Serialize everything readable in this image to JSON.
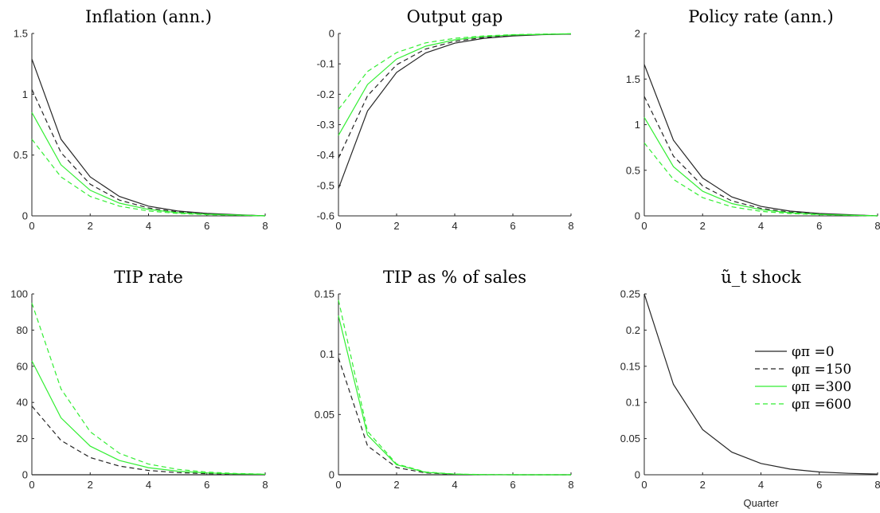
{
  "colors": {
    "black": "#262626",
    "green": "#33ee33",
    "axis": "#262626"
  },
  "chart_data": [
    {
      "type": "line",
      "title": "Inflation (ann.)",
      "xlabel": "",
      "ylabel": "",
      "xlim": [
        0,
        8
      ],
      "ylim": [
        0,
        1.5
      ],
      "xticks": [
        0,
        2,
        4,
        6,
        8
      ],
      "yticks": [
        0,
        0.5,
        1,
        1.5
      ],
      "ytick_labels": [
        "0",
        "0.5",
        "1",
        "1.5"
      ],
      "grid": false,
      "x": [
        0,
        1,
        2,
        3,
        4,
        5,
        6,
        7,
        8
      ],
      "series": [
        {
          "color": "#262626",
          "dash": "solid",
          "values": [
            1.29,
            0.63,
            0.32,
            0.16,
            0.08,
            0.04,
            0.02,
            0.01,
            0.0
          ]
        },
        {
          "color": "#262626",
          "dash": "dashed",
          "values": [
            1.04,
            0.52,
            0.26,
            0.13,
            0.065,
            0.033,
            0.016,
            0.008,
            0.0
          ]
        },
        {
          "color": "#33ee33",
          "dash": "solid",
          "values": [
            0.85,
            0.42,
            0.21,
            0.105,
            0.053,
            0.026,
            0.013,
            0.007,
            0.0
          ]
        },
        {
          "color": "#33ee33",
          "dash": "dashed",
          "values": [
            0.63,
            0.32,
            0.16,
            0.08,
            0.04,
            0.02,
            0.01,
            0.005,
            0.0
          ]
        }
      ]
    },
    {
      "type": "line",
      "title": "Output gap",
      "xlabel": "",
      "ylabel": "",
      "xlim": [
        0,
        8
      ],
      "ylim": [
        -0.6,
        0
      ],
      "xticks": [
        0,
        2,
        4,
        6,
        8
      ],
      "yticks": [
        0,
        -0.1,
        -0.2,
        -0.3,
        -0.4,
        -0.5,
        -0.6
      ],
      "ytick_labels": [
        "0",
        "-0.1",
        "-0.2",
        "-0.3",
        "-0.4",
        "-0.5",
        "-0.6"
      ],
      "grid": false,
      "x": [
        0,
        1,
        2,
        3,
        4,
        5,
        6,
        7,
        8
      ],
      "series": [
        {
          "color": "#262626",
          "dash": "solid",
          "values": [
            -0.51,
            -0.255,
            -0.128,
            -0.064,
            -0.032,
            -0.016,
            -0.008,
            -0.004,
            -0.002
          ]
        },
        {
          "color": "#262626",
          "dash": "dashed",
          "values": [
            -0.41,
            -0.205,
            -0.103,
            -0.051,
            -0.026,
            -0.013,
            -0.006,
            -0.003,
            -0.002
          ]
        },
        {
          "color": "#33ee33",
          "dash": "solid",
          "values": [
            -0.335,
            -0.168,
            -0.084,
            -0.042,
            -0.021,
            -0.01,
            -0.005,
            -0.003,
            -0.001
          ]
        },
        {
          "color": "#33ee33",
          "dash": "dashed",
          "values": [
            -0.25,
            -0.125,
            -0.063,
            -0.031,
            -0.016,
            -0.008,
            -0.004,
            -0.002,
            -0.001
          ]
        }
      ]
    },
    {
      "type": "line",
      "title": "Policy rate (ann.)",
      "xlabel": "",
      "ylabel": "",
      "xlim": [
        0,
        8
      ],
      "ylim": [
        0,
        2
      ],
      "xticks": [
        0,
        2,
        4,
        6,
        8
      ],
      "yticks": [
        0,
        0.5,
        1,
        1.5,
        2
      ],
      "ytick_labels": [
        "0",
        "0.5",
        "1",
        "1.5",
        "2"
      ],
      "grid": false,
      "x": [
        0,
        1,
        2,
        3,
        4,
        5,
        6,
        7,
        8
      ],
      "series": [
        {
          "color": "#262626",
          "dash": "solid",
          "values": [
            1.66,
            0.83,
            0.415,
            0.208,
            0.104,
            0.052,
            0.026,
            0.013,
            0.0
          ]
        },
        {
          "color": "#262626",
          "dash": "dashed",
          "values": [
            1.31,
            0.655,
            0.328,
            0.164,
            0.082,
            0.041,
            0.02,
            0.01,
            0.0
          ]
        },
        {
          "color": "#33ee33",
          "dash": "solid",
          "values": [
            1.08,
            0.54,
            0.27,
            0.135,
            0.068,
            0.034,
            0.017,
            0.008,
            0.0
          ]
        },
        {
          "color": "#33ee33",
          "dash": "dashed",
          "values": [
            0.8,
            0.4,
            0.2,
            0.1,
            0.05,
            0.025,
            0.013,
            0.006,
            0.0
          ]
        }
      ]
    },
    {
      "type": "line",
      "title": "TIP rate",
      "xlabel": "",
      "ylabel": "",
      "xlim": [
        0,
        8
      ],
      "ylim": [
        0,
        100
      ],
      "xticks": [
        0,
        2,
        4,
        6,
        8
      ],
      "yticks": [
        0,
        20,
        40,
        60,
        80,
        100
      ],
      "ytick_labels": [
        "0",
        "20",
        "40",
        "60",
        "80",
        "100"
      ],
      "grid": false,
      "x": [
        0,
        1,
        2,
        3,
        4,
        5,
        6,
        7,
        8
      ],
      "series": [
        {
          "color": "#262626",
          "dash": "solid",
          "values": [
            0,
            0,
            0,
            0,
            0,
            0,
            0,
            0,
            0
          ]
        },
        {
          "color": "#262626",
          "dash": "dashed",
          "values": [
            38,
            19,
            9.5,
            4.8,
            2.4,
            1.2,
            0.6,
            0.3,
            0.15
          ]
        },
        {
          "color": "#33ee33",
          "dash": "solid",
          "values": [
            63,
            31.5,
            15.8,
            7.9,
            3.9,
            2.0,
            1.0,
            0.5,
            0.25
          ]
        },
        {
          "color": "#33ee33",
          "dash": "dashed",
          "values": [
            95,
            47.5,
            23.8,
            11.9,
            5.9,
            3.0,
            1.5,
            0.7,
            0.35
          ]
        }
      ]
    },
    {
      "type": "line",
      "title": "TIP as % of sales",
      "xlabel": "",
      "ylabel": "",
      "xlim": [
        0,
        8
      ],
      "ylim": [
        0,
        0.15
      ],
      "xticks": [
        0,
        2,
        4,
        6,
        8
      ],
      "yticks": [
        0,
        0.05,
        0.1,
        0.15
      ],
      "ytick_labels": [
        "0",
        "0.05",
        "0.1",
        "0.15"
      ],
      "grid": false,
      "x": [
        0,
        1,
        2,
        3,
        4,
        5,
        6,
        7,
        8
      ],
      "series": [
        {
          "color": "#262626",
          "dash": "solid",
          "values": [
            0,
            0,
            0,
            0,
            0,
            0,
            0,
            0,
            0
          ]
        },
        {
          "color": "#262626",
          "dash": "dashed",
          "values": [
            0.097,
            0.024,
            0.006,
            0.0015,
            0.0004,
            0.0001,
            0,
            0,
            0
          ]
        },
        {
          "color": "#33ee33",
          "dash": "solid",
          "values": [
            0.132,
            0.033,
            0.0083,
            0.002,
            0.0005,
            0.0001,
            0,
            0,
            0
          ]
        },
        {
          "color": "#33ee33",
          "dash": "dashed",
          "values": [
            0.145,
            0.036,
            0.009,
            0.0023,
            0.0006,
            0.0001,
            0,
            0,
            0
          ]
        }
      ]
    },
    {
      "type": "line",
      "title": "ũ_t shock",
      "xlabel": "Quarter",
      "ylabel": "",
      "xlim": [
        0,
        8
      ],
      "ylim": [
        0,
        0.25
      ],
      "xticks": [
        0,
        2,
        4,
        6,
        8
      ],
      "yticks": [
        0,
        0.05,
        0.1,
        0.15,
        0.2,
        0.25
      ],
      "ytick_labels": [
        "0",
        "0.05",
        "0.1",
        "0.15",
        "0.2",
        "0.25"
      ],
      "grid": false,
      "x": [
        0,
        1,
        2,
        3,
        4,
        5,
        6,
        7,
        8
      ],
      "series": [
        {
          "color": "#262626",
          "dash": "solid",
          "values": [
            0.25,
            0.125,
            0.0625,
            0.0313,
            0.0156,
            0.0078,
            0.0039,
            0.002,
            0.001
          ]
        }
      ],
      "legend": {
        "placement": "center-right",
        "entries": [
          {
            "label": "φπ =0",
            "color": "#262626",
            "dash": "solid"
          },
          {
            "label": "φπ =150",
            "color": "#262626",
            "dash": "dashed"
          },
          {
            "label": "φπ =300",
            "color": "#33ee33",
            "dash": "solid"
          },
          {
            "label": "φπ =600",
            "color": "#33ee33",
            "dash": "dashed"
          }
        ]
      }
    }
  ]
}
